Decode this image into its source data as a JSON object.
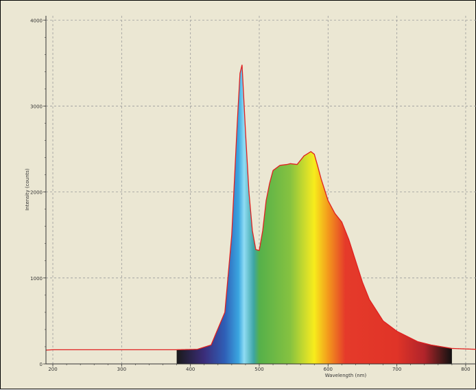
{
  "chart_data": {
    "type": "area",
    "xlabel": "Wavelength (nm)",
    "ylabel": "Intensity (counts)",
    "xlim": [
      190,
      815
    ],
    "ylim": [
      0,
      4050
    ],
    "x_ticks": [
      "200",
      "300",
      "400",
      "500",
      "600",
      "700",
      "800"
    ],
    "x_tick_values": [
      200,
      300,
      400,
      500,
      600,
      700,
      800
    ],
    "y_ticks": [
      "0",
      "1000",
      "2000",
      "3000",
      "4000"
    ],
    "y_tick_values": [
      0,
      1000,
      2000,
      3000,
      4000
    ],
    "grid": true,
    "colors": {
      "background": "#ebe7d3",
      "grid": "#9a9a9a",
      "curve": "#e02020"
    },
    "series": [
      {
        "x": [
          190,
          200,
          300,
          380,
          410,
          430,
          450,
          460,
          468,
          472,
          475,
          480,
          485,
          490,
          495,
          500,
          505,
          510,
          515,
          520,
          530,
          540,
          545,
          555,
          565,
          575,
          580,
          585,
          590,
          600,
          610,
          620,
          630,
          640,
          650,
          660,
          680,
          700,
          730,
          750,
          780,
          815
        ],
        "y": [
          160,
          165,
          165,
          165,
          170,
          220,
          600,
          1500,
          2800,
          3380,
          3480,
          2700,
          2000,
          1550,
          1330,
          1320,
          1550,
          1900,
          2100,
          2250,
          2310,
          2320,
          2330,
          2320,
          2420,
          2470,
          2440,
          2300,
          2150,
          1900,
          1750,
          1650,
          1450,
          1200,
          950,
          750,
          500,
          380,
          260,
          220,
          180,
          170
        ]
      }
    ],
    "spectrum_stops": [
      {
        "x": 380,
        "color": "#1a1a1a"
      },
      {
        "x": 420,
        "color": "#3b2d7a"
      },
      {
        "x": 450,
        "color": "#2f5fb7"
      },
      {
        "x": 470,
        "color": "#3aa6e0"
      },
      {
        "x": 478,
        "color": "#8fdcf4"
      },
      {
        "x": 492,
        "color": "#3da5a4"
      },
      {
        "x": 500,
        "color": "#55b04a"
      },
      {
        "x": 545,
        "color": "#86c240"
      },
      {
        "x": 570,
        "color": "#d9e029"
      },
      {
        "x": 580,
        "color": "#f7ec1c"
      },
      {
        "x": 600,
        "color": "#f39a1c"
      },
      {
        "x": 625,
        "color": "#e53a2a"
      },
      {
        "x": 700,
        "color": "#e03428"
      },
      {
        "x": 740,
        "color": "#b0242a"
      },
      {
        "x": 765,
        "color": "#4a1a1a"
      },
      {
        "x": 780,
        "color": "#111111"
      }
    ]
  }
}
